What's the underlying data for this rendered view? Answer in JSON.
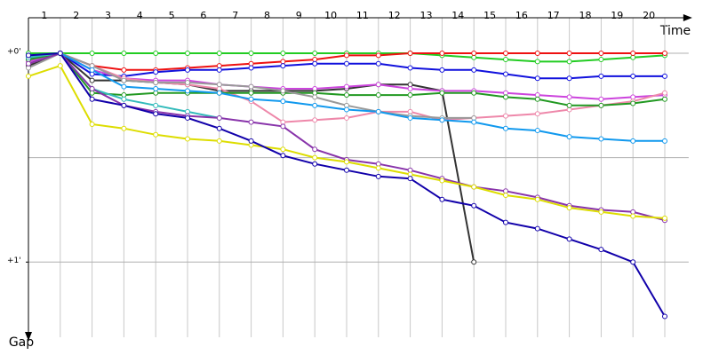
{
  "chart_data": {
    "type": "line",
    "x_label": "Time",
    "y_label": "Gap",
    "laps": [
      "1",
      "2",
      "3",
      "4",
      "5",
      "6",
      "7",
      "8",
      "9",
      "10",
      "11",
      "12",
      "13",
      "14",
      "15",
      "16",
      "17",
      "18",
      "19",
      "20"
    ],
    "x": [
      0,
      1,
      2,
      3,
      4,
      5,
      6,
      7,
      8,
      9,
      10,
      11,
      12,
      13,
      14,
      15,
      16,
      17,
      18,
      19,
      20
    ],
    "xlim": [
      0,
      20.75
    ],
    "xticks": [
      0,
      1,
      2,
      3,
      4,
      5,
      6,
      7,
      8,
      9,
      10,
      11,
      12,
      13,
      14,
      15,
      16,
      17,
      18,
      19,
      20
    ],
    "ylim": [
      -0.17,
      1.36
    ],
    "y_reversed": true,
    "yticks": [
      {
        "value": 0,
        "label": "+0'"
      },
      {
        "value": 1,
        "label": "+1'"
      }
    ],
    "ygrid": [
      0,
      0.5,
      1
    ],
    "series": [
      {
        "color": "#22cc22",
        "values": [
          0,
          0,
          0,
          0,
          0,
          0,
          0,
          0,
          0,
          0,
          0,
          0,
          0,
          0.01,
          0.02,
          0.03,
          0.04,
          0.04,
          0.03,
          0.02,
          0.01
        ]
      },
      {
        "color": "#ee1111",
        "values": [
          0.03,
          0,
          0.06,
          0.08,
          0.08,
          0.07,
          0.06,
          0.05,
          0.04,
          0.03,
          0.01,
          0.01,
          0,
          0,
          0,
          0,
          0,
          0,
          0,
          0,
          0
        ]
      },
      {
        "color": "#1111dd",
        "values": [
          0.02,
          0,
          0.1,
          0.11,
          0.09,
          0.08,
          0.08,
          0.07,
          0.06,
          0.05,
          0.05,
          0.05,
          0.07,
          0.08,
          0.08,
          0.1,
          0.12,
          0.12,
          0.11,
          0.11,
          0.11
        ]
      },
      {
        "color": "#333333",
        "values": [
          0.06,
          0,
          0.13,
          0.13,
          0.14,
          0.15,
          0.18,
          0.18,
          0.18,
          0.18,
          0.17,
          0.15,
          0.15,
          0.18,
          1.0,
          null,
          null,
          null,
          null,
          null,
          null
        ]
      },
      {
        "color": "#cc44dd",
        "values": [
          0.04,
          0,
          0.08,
          0.12,
          0.13,
          0.13,
          0.15,
          0.16,
          0.17,
          0.17,
          0.16,
          0.15,
          0.17,
          0.18,
          0.18,
          0.19,
          0.2,
          0.21,
          0.22,
          0.21,
          0.2
        ]
      },
      {
        "color": "#ee88aa",
        "values": [
          0.05,
          0,
          0.06,
          0.12,
          0.14,
          0.15,
          0.17,
          0.23,
          0.33,
          0.32,
          0.31,
          0.28,
          0.28,
          0.32,
          0.31,
          0.3,
          0.29,
          0.27,
          0.25,
          0.23,
          0.19
        ]
      },
      {
        "color": "#229922",
        "values": [
          0.03,
          0,
          0.19,
          0.2,
          0.19,
          0.19,
          0.19,
          0.19,
          0.19,
          0.19,
          0.2,
          0.2,
          0.2,
          0.19,
          0.19,
          0.21,
          0.22,
          0.25,
          0.25,
          0.24,
          0.22
        ]
      },
      {
        "color": "#999999",
        "values": [
          0.07,
          0,
          0.06,
          0.13,
          0.14,
          0.14,
          0.15,
          0.16,
          0.18,
          0.21,
          0.25,
          0.28,
          0.3,
          0.31,
          0.31,
          null,
          null,
          null,
          null,
          null,
          null
        ]
      },
      {
        "color": "#1199ee",
        "values": [
          0.01,
          0,
          0.08,
          0.16,
          0.17,
          0.18,
          0.19,
          0.22,
          0.23,
          0.25,
          0.27,
          0.28,
          0.31,
          0.32,
          0.33,
          0.36,
          0.37,
          0.4,
          0.41,
          0.42,
          0.42
        ]
      },
      {
        "color": "#33bbbb",
        "values": [
          0.02,
          0,
          0.17,
          0.22,
          0.25,
          0.28,
          0.31,
          null,
          null,
          null,
          null,
          null,
          null,
          null,
          null,
          null,
          null,
          null,
          null,
          null,
          null
        ]
      },
      {
        "color": "#8833aa",
        "values": [
          0.05,
          0,
          0.17,
          0.25,
          0.28,
          0.3,
          0.31,
          0.33,
          0.35,
          0.46,
          0.51,
          0.53,
          0.56,
          0.6,
          0.64,
          0.66,
          0.69,
          0.73,
          0.75,
          0.76,
          0.8
        ]
      },
      {
        "color": "#dddd00",
        "values": [
          0.11,
          0.06,
          0.34,
          0.36,
          0.39,
          0.41,
          0.42,
          0.44,
          0.46,
          0.5,
          0.52,
          0.55,
          0.58,
          0.61,
          0.64,
          0.68,
          0.7,
          0.74,
          0.76,
          0.78,
          0.79
        ]
      },
      {
        "color": "#1100aa",
        "values": [
          0.01,
          0,
          0.22,
          0.25,
          0.29,
          0.31,
          0.36,
          0.42,
          0.49,
          0.53,
          0.56,
          0.59,
          0.6,
          0.7,
          0.73,
          0.81,
          0.84,
          0.89,
          0.94,
          1.0,
          1.26
        ]
      }
    ]
  }
}
